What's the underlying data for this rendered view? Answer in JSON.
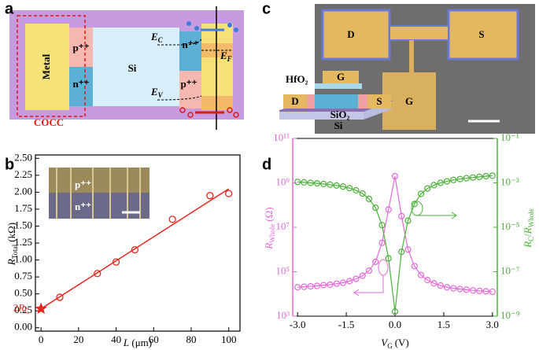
{
  "panel_a": {
    "label": "a",
    "metal": "Metal",
    "p_left": "p⁺⁺",
    "n_left": "n⁺⁺",
    "si": "Si",
    "cocc": "COCC",
    "ec": {
      "symbol": "E",
      "subscript": "C"
    },
    "n_right": "n⁺⁺",
    "ef": {
      "symbol": "E",
      "subscript": "F"
    },
    "p_right": "p⁺⁺",
    "ev": {
      "symbol": "E",
      "subscript": "V"
    }
  },
  "panel_c": {
    "label": "c",
    "pad_d": "D",
    "pad_s": "S",
    "pad_g": "G",
    "hfo2": "HfO₂",
    "stack_g": "G",
    "stack_d": "D",
    "stack_s": "S",
    "sio2": "SiO₂",
    "si": "Si"
  },
  "chart_data": [
    {
      "type": "scatter",
      "label": "b",
      "color": "#e8241c",
      "x": [
        10,
        30,
        40,
        50,
        70,
        90,
        100
      ],
      "values": [
        0.45,
        0.8,
        0.97,
        1.15,
        1.6,
        1.95,
        1.98
      ],
      "fit": {
        "x": [
          0,
          100
        ],
        "y": [
          0.28,
          2.05
        ]
      },
      "star": {
        "x": 0,
        "y": 0.28,
        "label": {
          "prefix": "2",
          "symbol": "R",
          "subscript": "C"
        }
      },
      "inset": {
        "p": "p⁺⁺",
        "n": "n⁺⁺"
      },
      "xlabel": {
        "symbol": "L",
        "unit": "(μm)"
      },
      "ylabel": {
        "symbol": "R",
        "subscript": "Total",
        "unit": "(kΩ)"
      },
      "xlim": [
        -3,
        106
      ],
      "xticks": [
        0,
        20,
        40,
        60,
        80,
        100
      ],
      "ylim": [
        -0.05,
        2.55
      ],
      "yticks": [
        {
          "value": 0,
          "label": "0.00"
        },
        0.25,
        {
          "value": 0.5,
          "label": "0.50"
        },
        0.75,
        {
          "value": 1,
          "label": "1.00"
        },
        1.25,
        {
          "value": 1.5,
          "label": "1.50"
        },
        1.75,
        {
          "value": 2,
          "label": "2.00"
        },
        2.25,
        {
          "value": 2.5,
          "label": "2.50"
        }
      ]
    },
    {
      "type": "line",
      "label": "d",
      "x": [
        -3,
        -2.8,
        -2.6,
        -2.4,
        -2.2,
        -2,
        -1.8,
        -1.6,
        -1.4,
        -1.2,
        -1,
        -0.8,
        -0.6,
        -0.4,
        -0.2,
        0,
        0.2,
        0.4,
        0.6,
        0.8,
        1,
        1.2,
        1.4,
        1.6,
        1.8,
        2,
        2.2,
        2.4,
        2.6,
        2.8,
        3
      ],
      "series": [
        {
          "name": "R_Whole",
          "color": "#e36ad8",
          "axis": "y",
          "values": [
            20000.0,
            21000.0,
            22000.0,
            23000.0,
            25000.0,
            26000.0,
            29000.0,
            32000.0,
            38000.0,
            48000.0,
            66000.0,
            112000.0,
            280000.0,
            2000000.0,
            63000000.0,
            2000000000.0,
            32000000.0,
            1000000.0,
            180000.0,
            71000.0,
            42000.0,
            30000.0,
            24000.0,
            20000.0,
            18000.0,
            16600.0,
            15500.0,
            14500.0,
            13800.0,
            13200.0,
            12600.0
          ]
        },
        {
          "name": "R_C/R_Whole",
          "color": "#4cb03a",
          "axis": "y2",
          "values": [
            0.0011,
            0.00105,
            0.001,
            0.00095,
            0.00089,
            0.00083,
            0.00076,
            0.00068,
            0.00058,
            0.00046,
            0.00033,
            0.00019,
            7.6e-05,
            1.26e-05,
            4e-07,
            1.6e-09,
            7.9e-07,
            2e-05,
            0.000112,
            0.00032,
            0.00056,
            0.00079,
            0.001,
            0.00117,
            0.00135,
            0.00148,
            0.00162,
            0.00174,
            0.00186,
            0.002,
            0.0021
          ]
        }
      ],
      "xlabel": {
        "symbol": "V",
        "subscript": "G",
        "unit": "(V)"
      },
      "ylabel": {
        "symbol": "R",
        "subscript": "Whole",
        "unit": "(Ω)"
      },
      "y2label": {
        "symbol": "R",
        "subscript": "C",
        "separator": "/",
        "symbol2": "R",
        "subscript2": "Whole"
      },
      "xlim": [
        -3.15,
        3.15
      ],
      "xticks": [
        {
          "value": -3,
          "label": "-3.0"
        },
        -1.5,
        {
          "value": 0,
          "label": "0.0"
        },
        1.5,
        {
          "value": 3,
          "label": "3.0"
        }
      ],
      "ylog": true,
      "ylim": [
        1000.0,
        100000000000.0
      ],
      "yticks": [
        {
          "value": 1000.0,
          "label": "10³"
        },
        {
          "value": 100000.0,
          "label": "10⁵"
        },
        {
          "value": 10000000.0,
          "label": "10⁷"
        },
        {
          "value": 1000000000.0,
          "label": "10⁹"
        },
        {
          "value": 100000000000.0,
          "label": "10¹¹"
        }
      ],
      "y2log": true,
      "y2lim": [
        1e-09,
        0.1
      ],
      "y2ticks": [
        {
          "value": 1e-09,
          "label": "10⁻⁹"
        },
        {
          "value": 1e-07,
          "label": "10⁻⁷"
        },
        {
          "value": 1e-05,
          "label": "10⁻⁵"
        },
        {
          "value": 0.001,
          "label": "10⁻³"
        },
        {
          "value": 0.1,
          "label": "10⁻¹"
        }
      ]
    }
  ]
}
